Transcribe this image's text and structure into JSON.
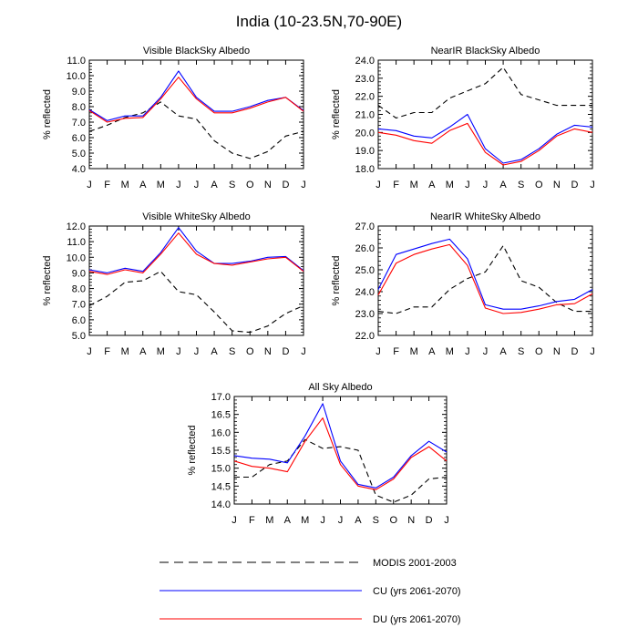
{
  "title": "India (10-23.5N,70-90E)",
  "legend": [
    {
      "key": "modis",
      "label": "MODIS 2001-2003",
      "color": "#000000",
      "dash": true
    },
    {
      "key": "cu",
      "label": "CU (yrs 2061-2070)",
      "color": "#0000ff",
      "dash": false
    },
    {
      "key": "du",
      "label": "DU (yrs 2061-2070)",
      "color": "#ff0000",
      "dash": false
    }
  ],
  "chart_data": [
    {
      "type": "line",
      "title": "Visible BlackSky Albedo",
      "ylabel": "% reflected",
      "categories": [
        "J",
        "F",
        "M",
        "A",
        "M",
        "J",
        "J",
        "A",
        "S",
        "O",
        "N",
        "D",
        "J"
      ],
      "ylim": [
        4.0,
        11.0
      ],
      "yticks": [
        "4.0",
        "5.0",
        "6.0",
        "7.0",
        "8.0",
        "9.0",
        "10.0",
        "11.0"
      ],
      "series": [
        {
          "name": "MODIS 2001-2003",
          "values": [
            6.4,
            6.8,
            7.3,
            7.6,
            8.3,
            7.4,
            7.2,
            5.8,
            5.0,
            4.65,
            5.1,
            6.1,
            6.4
          ]
        },
        {
          "name": "CU (yrs 2061-2070)",
          "values": [
            7.8,
            7.1,
            7.4,
            7.4,
            8.6,
            10.3,
            8.6,
            7.7,
            7.7,
            8.0,
            8.4,
            8.6,
            7.75
          ]
        },
        {
          "name": "DU (yrs 2061-2070)",
          "values": [
            7.75,
            7.0,
            7.25,
            7.3,
            8.5,
            9.9,
            8.5,
            7.6,
            7.6,
            7.9,
            8.3,
            8.6,
            7.7
          ]
        }
      ]
    },
    {
      "type": "line",
      "title": "NearIR BlackSky Albedo",
      "ylabel": "% reflected",
      "categories": [
        "J",
        "F",
        "M",
        "A",
        "M",
        "J",
        "J",
        "A",
        "S",
        "O",
        "N",
        "D",
        "J"
      ],
      "ylim": [
        18.0,
        24.0
      ],
      "yticks": [
        "18.0",
        "19.0",
        "20.0",
        "21.0",
        "22.0",
        "23.0",
        "24.0"
      ],
      "series": [
        {
          "name": "MODIS 2001-2003",
          "values": [
            21.5,
            20.8,
            21.1,
            21.1,
            21.9,
            22.3,
            22.7,
            23.6,
            22.1,
            21.8,
            21.5,
            21.5,
            21.5
          ]
        },
        {
          "name": "CU (yrs 2061-2070)",
          "values": [
            20.2,
            20.1,
            19.8,
            19.7,
            20.3,
            21.0,
            19.1,
            18.3,
            18.5,
            19.1,
            19.9,
            20.4,
            20.3
          ]
        },
        {
          "name": "DU (yrs 2061-2070)",
          "values": [
            20.0,
            19.85,
            19.55,
            19.4,
            20.1,
            20.5,
            18.9,
            18.2,
            18.4,
            19.0,
            19.8,
            20.2,
            20.0
          ]
        }
      ]
    },
    {
      "type": "line",
      "title": "Visible WhiteSky Albedo",
      "ylabel": "% reflected",
      "categories": [
        "J",
        "F",
        "M",
        "A",
        "M",
        "J",
        "J",
        "A",
        "S",
        "O",
        "N",
        "D",
        "J"
      ],
      "ylim": [
        5.0,
        12.0
      ],
      "yticks": [
        "5.0",
        "6.0",
        "7.0",
        "8.0",
        "9.0",
        "10.0",
        "11.0",
        "12.0"
      ],
      "series": [
        {
          "name": "MODIS 2001-2003",
          "values": [
            6.9,
            7.5,
            8.4,
            8.5,
            9.1,
            7.8,
            7.6,
            6.5,
            5.3,
            5.2,
            5.6,
            6.4,
            6.9
          ]
        },
        {
          "name": "CU (yrs 2061-2070)",
          "values": [
            9.2,
            9.0,
            9.3,
            9.1,
            10.3,
            11.9,
            10.4,
            9.6,
            9.6,
            9.75,
            10.0,
            10.05,
            9.15
          ]
        },
        {
          "name": "DU (yrs 2061-2070)",
          "values": [
            9.1,
            8.9,
            9.2,
            9.0,
            10.2,
            11.55,
            10.2,
            9.6,
            9.5,
            9.7,
            9.9,
            10.0,
            9.1
          ]
        }
      ]
    },
    {
      "type": "line",
      "title": "NearIR WhiteSky Albedo",
      "ylabel": "% reflected",
      "categories": [
        "J",
        "F",
        "M",
        "A",
        "M",
        "J",
        "J",
        "A",
        "S",
        "O",
        "N",
        "D",
        "J"
      ],
      "ylim": [
        22.0,
        27.0
      ],
      "yticks": [
        "22.0",
        "23.0",
        "24.0",
        "25.0",
        "26.0",
        "27.0"
      ],
      "series": [
        {
          "name": "MODIS 2001-2003",
          "values": [
            23.1,
            23.0,
            23.3,
            23.3,
            24.1,
            24.6,
            24.9,
            26.1,
            24.5,
            24.2,
            23.5,
            23.1,
            23.1
          ]
        },
        {
          "name": "CU (yrs 2061-2070)",
          "values": [
            24.1,
            25.7,
            25.95,
            26.2,
            26.4,
            25.5,
            23.4,
            23.2,
            23.2,
            23.35,
            23.55,
            23.65,
            24.1
          ]
        },
        {
          "name": "DU (yrs 2061-2070)",
          "values": [
            23.85,
            25.3,
            25.7,
            25.95,
            26.15,
            25.2,
            23.25,
            23.0,
            23.05,
            23.2,
            23.4,
            23.45,
            23.9
          ]
        }
      ]
    },
    {
      "type": "line",
      "title": "All Sky Albedo",
      "ylabel": "% reflected",
      "categories": [
        "J",
        "F",
        "M",
        "A",
        "M",
        "J",
        "J",
        "A",
        "S",
        "O",
        "N",
        "D",
        "J"
      ],
      "ylim": [
        14.0,
        17.0
      ],
      "yticks": [
        "14.0",
        "14.5",
        "15.0",
        "15.5",
        "16.0",
        "16.5",
        "17.0"
      ],
      "series": [
        {
          "name": "MODIS 2001-2003",
          "values": [
            14.75,
            14.75,
            15.1,
            15.2,
            15.8,
            15.55,
            15.6,
            15.5,
            14.25,
            14.05,
            14.25,
            14.7,
            14.75
          ]
        },
        {
          "name": "CU (yrs 2061-2070)",
          "values": [
            15.35,
            15.28,
            15.25,
            15.15,
            15.9,
            16.8,
            15.2,
            14.55,
            14.45,
            14.75,
            15.35,
            15.75,
            15.45
          ]
        },
        {
          "name": "DU (yrs 2061-2070)",
          "values": [
            15.2,
            15.05,
            15.0,
            14.9,
            15.75,
            16.4,
            15.1,
            14.5,
            14.4,
            14.7,
            15.3,
            15.6,
            15.2
          ]
        }
      ]
    }
  ]
}
